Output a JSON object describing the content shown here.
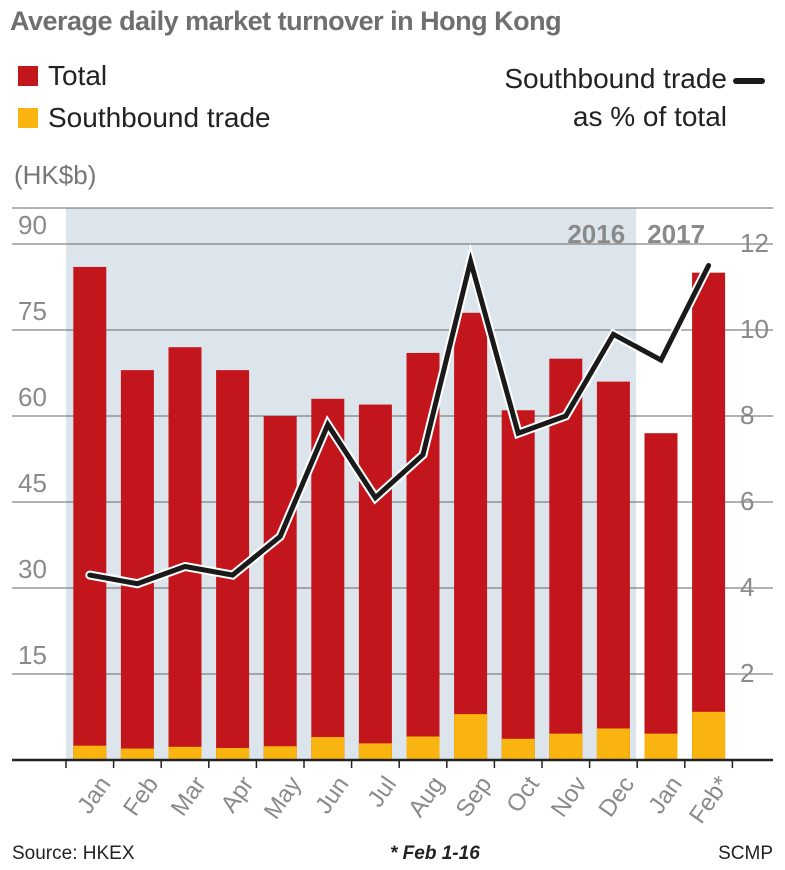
{
  "title": "Average daily market turnover in Hong Kong",
  "legend": {
    "total_label": "Total",
    "southbound_label": "Southbound trade",
    "line_label_1": "Southbound trade",
    "line_label_2": "as % of total"
  },
  "unit_label": "(HK$b)",
  "year_labels": [
    "2016",
    "2017"
  ],
  "footer": {
    "source": "Source: HKEX",
    "note": "* Feb 1-16",
    "credit": "SCMP"
  },
  "colors": {
    "total": "#c3161c",
    "southbound": "#f9b40f",
    "line": "#1a1a1a",
    "shade": "#dde5ec"
  },
  "chart_data": {
    "type": "bar",
    "categories": [
      "Jan",
      "Feb",
      "Mar",
      "Apr",
      "May",
      "Jun",
      "Jul",
      "Aug",
      "Sep",
      "Oct",
      "Nov",
      "Dec",
      "Jan",
      "Feb*"
    ],
    "series": [
      {
        "name": "Total",
        "values": [
          86,
          68,
          72,
          68,
          60,
          63,
          62,
          71,
          78,
          61,
          70,
          66,
          57,
          85
        ]
      },
      {
        "name": "Southbound trade",
        "values": [
          2.5,
          2.0,
          2.3,
          2.1,
          2.4,
          4.0,
          2.9,
          4.1,
          8.0,
          3.7,
          4.6,
          5.5,
          4.6,
          8.4
        ]
      },
      {
        "name": "Southbound trade as % of total",
        "axis": "right",
        "type": "line",
        "values": [
          4.3,
          4.1,
          4.5,
          4.3,
          5.2,
          7.8,
          6.1,
          7.1,
          11.6,
          7.6,
          8.0,
          9.9,
          9.3,
          11.5
        ]
      }
    ],
    "y_left": {
      "ticks": [
        15,
        30,
        45,
        60,
        75,
        90
      ],
      "ylim": [
        0,
        90
      ]
    },
    "y_right": {
      "ticks": [
        2,
        4,
        6,
        8,
        10,
        12
      ],
      "ylim": [
        0,
        12
      ]
    },
    "shaded_period": "2016",
    "grid": true
  }
}
